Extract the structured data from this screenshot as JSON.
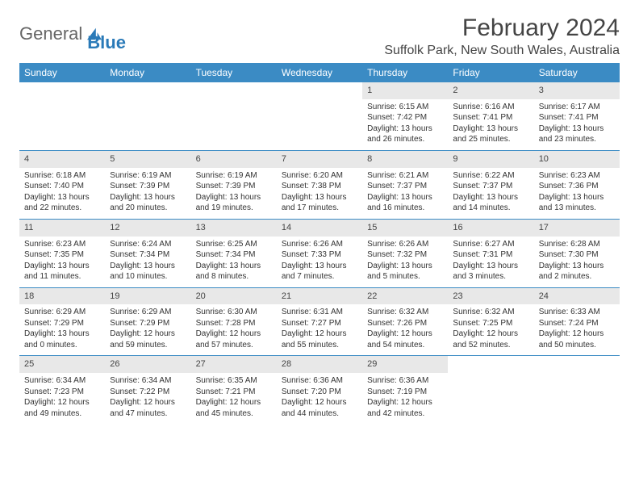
{
  "logo": {
    "text1": "General",
    "text2": "Blue"
  },
  "title": "February 2024",
  "location": "Suffolk Park, New South Wales, Australia",
  "colors": {
    "header_bg": "#3b8bc4",
    "header_text": "#ffffff",
    "daynum_bg": "#e8e8e8",
    "border": "#3b8bc4",
    "logo_blue": "#2a7ab8",
    "body_text": "#333333"
  },
  "day_names": [
    "Sunday",
    "Monday",
    "Tuesday",
    "Wednesday",
    "Thursday",
    "Friday",
    "Saturday"
  ],
  "weeks": [
    [
      {
        "n": "",
        "sr": "",
        "ss": "",
        "dl1": "",
        "dl2": "",
        "empty": true
      },
      {
        "n": "",
        "sr": "",
        "ss": "",
        "dl1": "",
        "dl2": "",
        "empty": true
      },
      {
        "n": "",
        "sr": "",
        "ss": "",
        "dl1": "",
        "dl2": "",
        "empty": true
      },
      {
        "n": "",
        "sr": "",
        "ss": "",
        "dl1": "",
        "dl2": "",
        "empty": true
      },
      {
        "n": "1",
        "sr": "Sunrise: 6:15 AM",
        "ss": "Sunset: 7:42 PM",
        "dl1": "Daylight: 13 hours",
        "dl2": "and 26 minutes."
      },
      {
        "n": "2",
        "sr": "Sunrise: 6:16 AM",
        "ss": "Sunset: 7:41 PM",
        "dl1": "Daylight: 13 hours",
        "dl2": "and 25 minutes."
      },
      {
        "n": "3",
        "sr": "Sunrise: 6:17 AM",
        "ss": "Sunset: 7:41 PM",
        "dl1": "Daylight: 13 hours",
        "dl2": "and 23 minutes."
      }
    ],
    [
      {
        "n": "4",
        "sr": "Sunrise: 6:18 AM",
        "ss": "Sunset: 7:40 PM",
        "dl1": "Daylight: 13 hours",
        "dl2": "and 22 minutes."
      },
      {
        "n": "5",
        "sr": "Sunrise: 6:19 AM",
        "ss": "Sunset: 7:39 PM",
        "dl1": "Daylight: 13 hours",
        "dl2": "and 20 minutes."
      },
      {
        "n": "6",
        "sr": "Sunrise: 6:19 AM",
        "ss": "Sunset: 7:39 PM",
        "dl1": "Daylight: 13 hours",
        "dl2": "and 19 minutes."
      },
      {
        "n": "7",
        "sr": "Sunrise: 6:20 AM",
        "ss": "Sunset: 7:38 PM",
        "dl1": "Daylight: 13 hours",
        "dl2": "and 17 minutes."
      },
      {
        "n": "8",
        "sr": "Sunrise: 6:21 AM",
        "ss": "Sunset: 7:37 PM",
        "dl1": "Daylight: 13 hours",
        "dl2": "and 16 minutes."
      },
      {
        "n": "9",
        "sr": "Sunrise: 6:22 AM",
        "ss": "Sunset: 7:37 PM",
        "dl1": "Daylight: 13 hours",
        "dl2": "and 14 minutes."
      },
      {
        "n": "10",
        "sr": "Sunrise: 6:23 AM",
        "ss": "Sunset: 7:36 PM",
        "dl1": "Daylight: 13 hours",
        "dl2": "and 13 minutes."
      }
    ],
    [
      {
        "n": "11",
        "sr": "Sunrise: 6:23 AM",
        "ss": "Sunset: 7:35 PM",
        "dl1": "Daylight: 13 hours",
        "dl2": "and 11 minutes."
      },
      {
        "n": "12",
        "sr": "Sunrise: 6:24 AM",
        "ss": "Sunset: 7:34 PM",
        "dl1": "Daylight: 13 hours",
        "dl2": "and 10 minutes."
      },
      {
        "n": "13",
        "sr": "Sunrise: 6:25 AM",
        "ss": "Sunset: 7:34 PM",
        "dl1": "Daylight: 13 hours",
        "dl2": "and 8 minutes."
      },
      {
        "n": "14",
        "sr": "Sunrise: 6:26 AM",
        "ss": "Sunset: 7:33 PM",
        "dl1": "Daylight: 13 hours",
        "dl2": "and 7 minutes."
      },
      {
        "n": "15",
        "sr": "Sunrise: 6:26 AM",
        "ss": "Sunset: 7:32 PM",
        "dl1": "Daylight: 13 hours",
        "dl2": "and 5 minutes."
      },
      {
        "n": "16",
        "sr": "Sunrise: 6:27 AM",
        "ss": "Sunset: 7:31 PM",
        "dl1": "Daylight: 13 hours",
        "dl2": "and 3 minutes."
      },
      {
        "n": "17",
        "sr": "Sunrise: 6:28 AM",
        "ss": "Sunset: 7:30 PM",
        "dl1": "Daylight: 13 hours",
        "dl2": "and 2 minutes."
      }
    ],
    [
      {
        "n": "18",
        "sr": "Sunrise: 6:29 AM",
        "ss": "Sunset: 7:29 PM",
        "dl1": "Daylight: 13 hours",
        "dl2": "and 0 minutes."
      },
      {
        "n": "19",
        "sr": "Sunrise: 6:29 AM",
        "ss": "Sunset: 7:29 PM",
        "dl1": "Daylight: 12 hours",
        "dl2": "and 59 minutes."
      },
      {
        "n": "20",
        "sr": "Sunrise: 6:30 AM",
        "ss": "Sunset: 7:28 PM",
        "dl1": "Daylight: 12 hours",
        "dl2": "and 57 minutes."
      },
      {
        "n": "21",
        "sr": "Sunrise: 6:31 AM",
        "ss": "Sunset: 7:27 PM",
        "dl1": "Daylight: 12 hours",
        "dl2": "and 55 minutes."
      },
      {
        "n": "22",
        "sr": "Sunrise: 6:32 AM",
        "ss": "Sunset: 7:26 PM",
        "dl1": "Daylight: 12 hours",
        "dl2": "and 54 minutes."
      },
      {
        "n": "23",
        "sr": "Sunrise: 6:32 AM",
        "ss": "Sunset: 7:25 PM",
        "dl1": "Daylight: 12 hours",
        "dl2": "and 52 minutes."
      },
      {
        "n": "24",
        "sr": "Sunrise: 6:33 AM",
        "ss": "Sunset: 7:24 PM",
        "dl1": "Daylight: 12 hours",
        "dl2": "and 50 minutes."
      }
    ],
    [
      {
        "n": "25",
        "sr": "Sunrise: 6:34 AM",
        "ss": "Sunset: 7:23 PM",
        "dl1": "Daylight: 12 hours",
        "dl2": "and 49 minutes."
      },
      {
        "n": "26",
        "sr": "Sunrise: 6:34 AM",
        "ss": "Sunset: 7:22 PM",
        "dl1": "Daylight: 12 hours",
        "dl2": "and 47 minutes."
      },
      {
        "n": "27",
        "sr": "Sunrise: 6:35 AM",
        "ss": "Sunset: 7:21 PM",
        "dl1": "Daylight: 12 hours",
        "dl2": "and 45 minutes."
      },
      {
        "n": "28",
        "sr": "Sunrise: 6:36 AM",
        "ss": "Sunset: 7:20 PM",
        "dl1": "Daylight: 12 hours",
        "dl2": "and 44 minutes."
      },
      {
        "n": "29",
        "sr": "Sunrise: 6:36 AM",
        "ss": "Sunset: 7:19 PM",
        "dl1": "Daylight: 12 hours",
        "dl2": "and 42 minutes."
      },
      {
        "n": "",
        "sr": "",
        "ss": "",
        "dl1": "",
        "dl2": "",
        "empty": true
      },
      {
        "n": "",
        "sr": "",
        "ss": "",
        "dl1": "",
        "dl2": "",
        "empty": true
      }
    ]
  ]
}
